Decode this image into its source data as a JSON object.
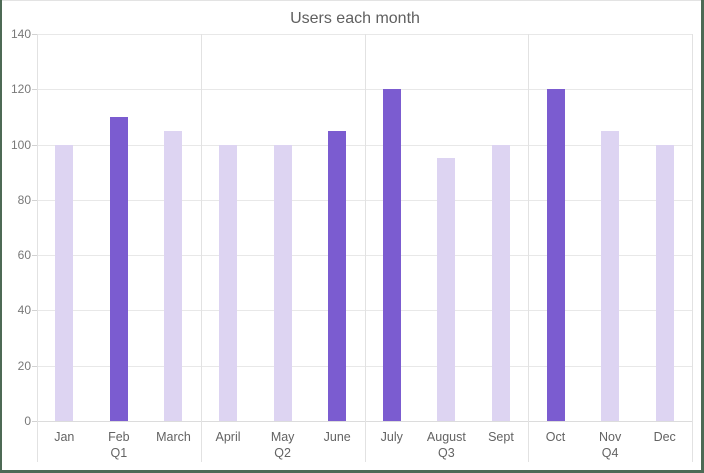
{
  "chart_title": "Users each month",
  "chart_data": {
    "type": "bar",
    "title": "Users each month",
    "categories": [
      "Jan",
      "Feb",
      "March",
      "April",
      "May",
      "June",
      "July",
      "August",
      "Sept",
      "Oct",
      "Nov",
      "Dec"
    ],
    "values": [
      100,
      110,
      105,
      100,
      100,
      105,
      120,
      95,
      100,
      120,
      105,
      100
    ],
    "highlighted": [
      false,
      true,
      false,
      false,
      false,
      true,
      true,
      false,
      false,
      true,
      false,
      false
    ],
    "groups": [
      {
        "label": "Q1",
        "categories": [
          "Jan",
          "Feb",
          "March"
        ]
      },
      {
        "label": "Q2",
        "categories": [
          "April",
          "May",
          "June"
        ]
      },
      {
        "label": "Q3",
        "categories": [
          "July",
          "August",
          "Sept"
        ]
      },
      {
        "label": "Q4",
        "categories": [
          "Oct",
          "Nov",
          "Dec"
        ]
      }
    ],
    "xlabel": "",
    "ylabel": "",
    "ylim": [
      0,
      140
    ],
    "yticks": [
      0,
      20,
      40,
      60,
      80,
      100,
      120,
      140
    ],
    "grid": true,
    "legend_position": "none",
    "colors": {
      "bar_default": "#ddd4f2",
      "bar_highlight": "#7b5cd0",
      "gridline": "#e8e8e8",
      "axis_baseline": "#dcdcdc",
      "vertical_line": "#e2e2e2",
      "tick_mark": "#d2d2d2",
      "tick_label": "#787878",
      "category_label": "#636363",
      "title": "#5f5f5f",
      "frame_border_green": "#4d6a55",
      "frame_border_top": "#e3e3e3",
      "background": "#ffffff"
    }
  }
}
